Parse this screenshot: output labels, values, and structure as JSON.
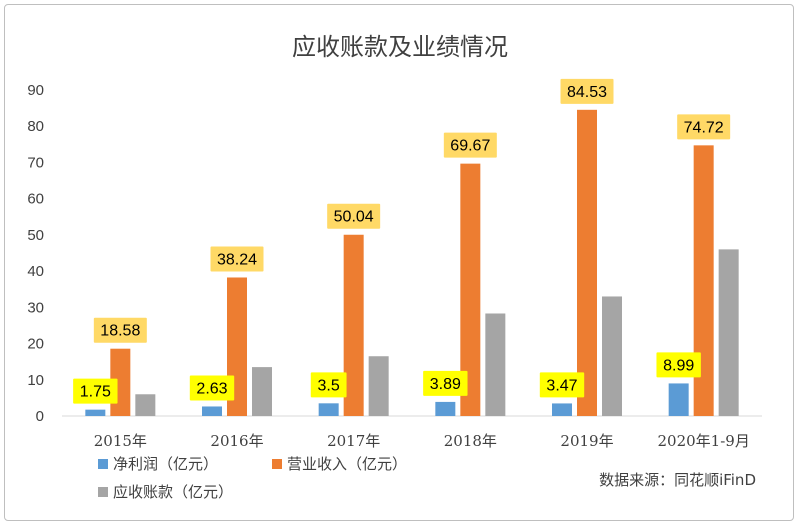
{
  "chart_data": {
    "type": "bar",
    "title": "应收账款及业绩情况",
    "categories": [
      "2015年",
      "2016年",
      "2017年",
      "2018年",
      "2019年",
      "2020年1-9月"
    ],
    "series": [
      {
        "name": "净利润（亿元）",
        "color": "#5b9bd5",
        "values": [
          1.75,
          2.63,
          3.5,
          3.89,
          3.47,
          8.99
        ],
        "labels": [
          "1.75",
          "2.63",
          "3.5",
          "3.89",
          "3.47",
          "8.99"
        ],
        "label_bg": "#ffff00"
      },
      {
        "name": "营业收入（亿元）",
        "color": "#ed7d31",
        "values": [
          18.58,
          38.24,
          50.04,
          69.67,
          84.53,
          74.72
        ],
        "labels": [
          "18.58",
          "38.24",
          "50.04",
          "69.67",
          "84.53",
          "74.72"
        ],
        "label_bg": "#ffd966"
      },
      {
        "name": "应收账款（亿元）",
        "color": "#a5a5a5",
        "values": [
          6.0,
          13.5,
          16.5,
          28.3,
          33.0,
          46.0
        ],
        "labels": []
      }
    ],
    "yticks": [
      "0",
      "10",
      "20",
      "30",
      "40",
      "50",
      "60",
      "70",
      "80",
      "90"
    ],
    "ylim": [
      0,
      90
    ],
    "xlabel": "",
    "ylabel": "",
    "legend_position": "bottom",
    "source": "数据来源：同花顺iFinD"
  }
}
